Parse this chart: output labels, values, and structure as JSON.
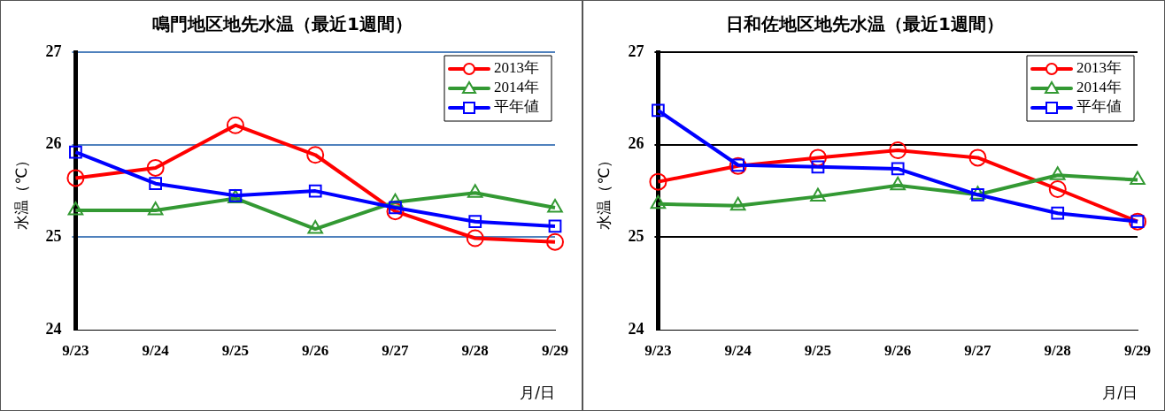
{
  "chart_data": [
    {
      "type": "line",
      "title": "鳴門地区地先水温（最近1週間）",
      "xlabel": "月/日",
      "ylabel": "水温（℃）",
      "categories": [
        "9/23",
        "9/24",
        "9/25",
        "9/26",
        "9/27",
        "9/28",
        "9/29"
      ],
      "ylim": [
        24,
        27
      ],
      "yticks": [
        24,
        25,
        26,
        27
      ],
      "grid": "y",
      "legend": "top right",
      "series": [
        {
          "name": "2013年",
          "color": "#ff0000",
          "marker": "circle",
          "values": [
            25.64,
            25.75,
            26.21,
            25.89,
            25.28,
            24.99,
            24.95
          ]
        },
        {
          "name": "2014年",
          "color": "#339933",
          "marker": "triangle",
          "values": [
            25.29,
            25.29,
            25.42,
            25.09,
            25.38,
            25.48,
            25.32
          ]
        },
        {
          "name": "平年値",
          "color": "#0000ff",
          "marker": "square",
          "values": [
            25.92,
            25.58,
            25.45,
            25.5,
            25.32,
            25.17,
            25.12
          ]
        }
      ]
    },
    {
      "type": "line",
      "title": "日和佐地区地先水温（最近1週間）",
      "xlabel": "月/日",
      "ylabel": "水温（℃）",
      "categories": [
        "9/23",
        "9/24",
        "9/25",
        "9/26",
        "9/27",
        "9/28",
        "9/29"
      ],
      "ylim": [
        24,
        27
      ],
      "yticks": [
        24,
        25,
        26,
        27
      ],
      "grid": "y",
      "legend": "top right",
      "series": [
        {
          "name": "2013年",
          "color": "#ff0000",
          "marker": "circle",
          "values": [
            25.6,
            25.77,
            25.86,
            25.94,
            25.86,
            25.52,
            25.17
          ]
        },
        {
          "name": "2014年",
          "color": "#339933",
          "marker": "triangle",
          "values": [
            25.36,
            25.34,
            25.44,
            25.56,
            25.46,
            25.67,
            25.62
          ]
        },
        {
          "name": "平年値",
          "color": "#0000ff",
          "marker": "square",
          "values": [
            26.37,
            25.78,
            25.76,
            25.74,
            25.46,
            25.26,
            25.17
          ]
        }
      ]
    }
  ]
}
